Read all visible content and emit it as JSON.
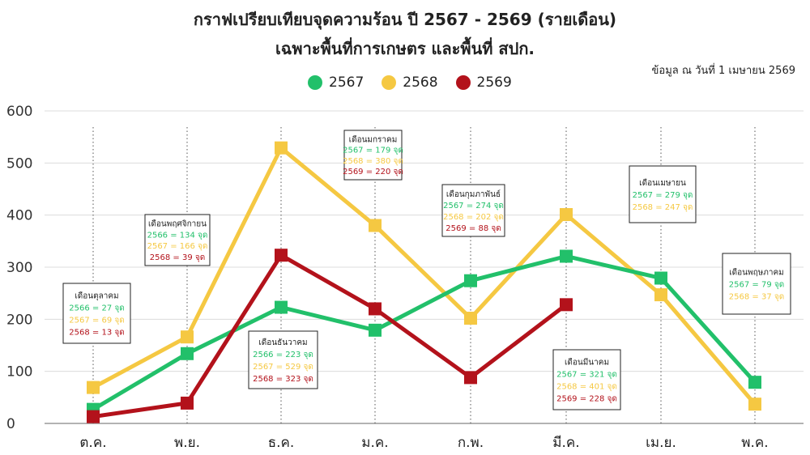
{
  "header": {
    "title_line1": "กราฟเปรียบเทียบจุดความร้อน ปี 2567 - 2569 (รายเดือน)",
    "title_line2": "เฉพาะพื้นที่การเกษตร และพื้นที่ สปก.",
    "as_of": "ข้อมูล ณ วันที่ 1 เมษายน 2569"
  },
  "chart_data": {
    "type": "line",
    "title": "กราฟเปรียบเทียบจุดความร้อน ปี 2567 - 2569 (รายเดือน)",
    "subtitle": "เฉพาะพื้นที่การเกษตร และพื้นที่ สปก.",
    "categories": [
      "ต.ค.",
      "พ.ย.",
      "ธ.ค.",
      "ม.ค.",
      "ก.พ.",
      "มี.ค.",
      "เม.ย.",
      "พ.ค."
    ],
    "ylim": [
      0,
      600
    ],
    "yticks": [
      0,
      100,
      200,
      300,
      400,
      500,
      600
    ],
    "grid": true,
    "legend_position": "top-center",
    "series": [
      {
        "name": "2567",
        "color": "#22c06a",
        "values": [
          27,
          134,
          223,
          179,
          274,
          321,
          279,
          79
        ]
      },
      {
        "name": "2568",
        "color": "#f5c842",
        "values": [
          69,
          166,
          529,
          380,
          202,
          401,
          247,
          37
        ]
      },
      {
        "name": "2569",
        "color": "#b3121b",
        "values": [
          13,
          39,
          323,
          220,
          88,
          228,
          null,
          null
        ]
      }
    ],
    "annotations": [
      {
        "index": 0,
        "title": "เดือนตุลาคม",
        "lines": [
          {
            "text": "2566 = 27 จุด",
            "color": "#22c06a"
          },
          {
            "text": "2567 = 69 จุด",
            "color": "#f5c842"
          },
          {
            "text": "2568 = 13 จุด",
            "color": "#b3121b"
          }
        ]
      },
      {
        "index": 1,
        "title": "เดือนพฤศจิกายน",
        "lines": [
          {
            "text": "2566 = 134 จุด",
            "color": "#22c06a"
          },
          {
            "text": "2567 = 166 จุด",
            "color": "#f5c842"
          },
          {
            "text": "2568 = 39 จุด",
            "color": "#b3121b"
          }
        ]
      },
      {
        "index": 2,
        "title": "เดือนธันวาคม",
        "lines": [
          {
            "text": "2566 = 223 จุด",
            "color": "#22c06a"
          },
          {
            "text": "2567 = 529 จุด",
            "color": "#f5c842"
          },
          {
            "text": "2568 = 323 จุด",
            "color": "#b3121b"
          }
        ]
      },
      {
        "index": 3,
        "title": "เดือนมกราคม",
        "lines": [
          {
            "text": "2567 = 179 จุด",
            "color": "#22c06a"
          },
          {
            "text": "2568 = 380 จุด",
            "color": "#f5c842"
          },
          {
            "text": "2569 = 220 จุด",
            "color": "#b3121b"
          }
        ]
      },
      {
        "index": 4,
        "title": "เดือนกุมภาพันธ์",
        "lines": [
          {
            "text": "2567 = 274 จุด",
            "color": "#22c06a"
          },
          {
            "text": "2568 = 202 จุด",
            "color": "#f5c842"
          },
          {
            "text": "2569 = 88 จุด",
            "color": "#b3121b"
          }
        ]
      },
      {
        "index": 5,
        "title": "เดือนมีนาคม",
        "lines": [
          {
            "text": "2567 = 321 จุด",
            "color": "#22c06a"
          },
          {
            "text": "2568 = 401 จุด",
            "color": "#f5c842"
          },
          {
            "text": "2569 = 228 จุด",
            "color": "#b3121b"
          }
        ]
      },
      {
        "index": 6,
        "title": "เดือนเมษายน",
        "lines": [
          {
            "text": "2567 = 279 จุด",
            "color": "#22c06a"
          },
          {
            "text": "2568 = 247 จุด",
            "color": "#f5c842"
          }
        ]
      },
      {
        "index": 7,
        "title": "เดือนพฤษภาคม",
        "lines": [
          {
            "text": "2567 = 79 จุด",
            "color": "#22c06a"
          },
          {
            "text": "2568 = 37 จุด",
            "color": "#f5c842"
          }
        ]
      }
    ]
  }
}
